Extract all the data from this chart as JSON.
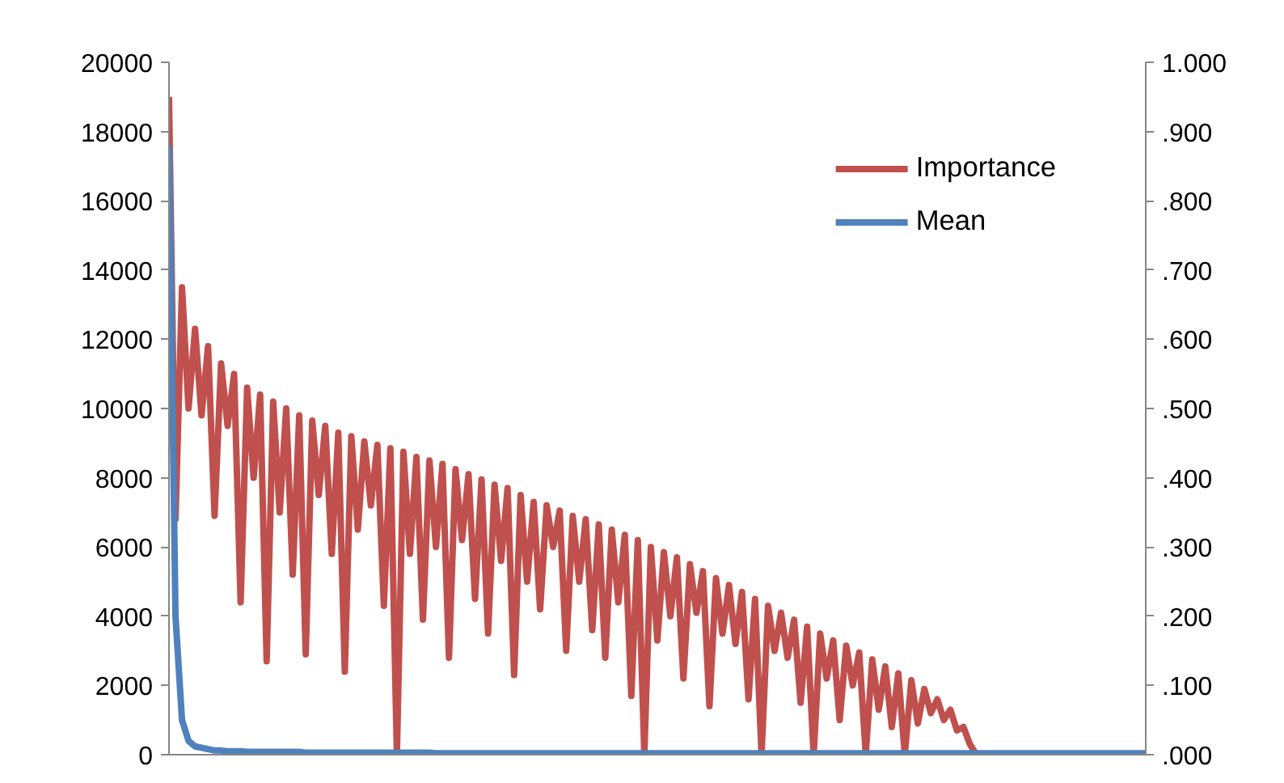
{
  "chart_data": {
    "type": "line",
    "categories": [
      null,
      null,
      null,
      null,
      null,
      null,
      null,
      null,
      null,
      null,
      null,
      null,
      null,
      null,
      null,
      null,
      null,
      null,
      null,
      null,
      null,
      null,
      null,
      null,
      null,
      null,
      null,
      null,
      null,
      null,
      null,
      null,
      null,
      null,
      null,
      null,
      null,
      null,
      null,
      null,
      null,
      null,
      null,
      null,
      null,
      null,
      null,
      null,
      null,
      null,
      null,
      null,
      null,
      null,
      null,
      null,
      null,
      null,
      null,
      null,
      null,
      null,
      null,
      null,
      null,
      null,
      null,
      null,
      null,
      null,
      null,
      null,
      null,
      null,
      null,
      null,
      null,
      null,
      null,
      null,
      null,
      null,
      null,
      null,
      null,
      null,
      null,
      null,
      null,
      null,
      null,
      null,
      null,
      null,
      null,
      null,
      null,
      null,
      null,
      null,
      null,
      null,
      null,
      null,
      null,
      null,
      null,
      null,
      null,
      null,
      null,
      null,
      null,
      null,
      null,
      null,
      null,
      null,
      null,
      null,
      null,
      null,
      null,
      null,
      null,
      null,
      null,
      null,
      null,
      null,
      null,
      null,
      null,
      null,
      null,
      null,
      null,
      null,
      null,
      null,
      null,
      null,
      null,
      null,
      null,
      null,
      null,
      null,
      null,
      null,
      null
    ],
    "series": [
      {
        "name": "Importance",
        "color": "#c0504d",
        "values": [
          19000,
          6800,
          13500,
          10000,
          12300,
          9800,
          11800,
          6900,
          11300,
          9500,
          11000,
          4400,
          10600,
          8000,
          10400,
          2700,
          10200,
          7000,
          10000,
          5200,
          9800,
          2900,
          9650,
          7500,
          9500,
          5800,
          9300,
          2400,
          9200,
          6500,
          9050,
          7200,
          8950,
          4300,
          8850,
          0,
          8750,
          5800,
          8600,
          3900,
          8500,
          6000,
          8400,
          2800,
          8250,
          6200,
          8100,
          4500,
          7950,
          3500,
          7800,
          5600,
          7700,
          2300,
          7500,
          5000,
          7300,
          4200,
          7200,
          6000,
          7050,
          3000,
          6900,
          5000,
          6800,
          3600,
          6650,
          2800,
          6500,
          4400,
          6350,
          1700,
          6200,
          0,
          6000,
          3300,
          5850,
          4000,
          5700,
          2200,
          5500,
          4100,
          5300,
          1400,
          5100,
          3500,
          4900,
          3200,
          4700,
          1600,
          4500,
          0,
          4300,
          3000,
          4100,
          2800,
          3900,
          1500,
          3700,
          0,
          3500,
          2200,
          3300,
          1000,
          3150,
          2000,
          2950,
          0,
          2750,
          1300,
          2550,
          800,
          2350,
          0,
          2150,
          900,
          1900,
          1200,
          1600,
          1000,
          1300,
          700,
          800,
          300,
          0,
          null,
          null,
          null,
          null,
          null,
          null,
          null,
          null,
          null,
          null,
          null,
          null,
          null,
          null,
          null,
          null,
          null,
          null,
          null,
          null,
          null,
          null,
          null,
          null,
          null,
          null
        ]
      },
      {
        "name": "Mean",
        "color": "#4f81bd",
        "axis": "y2",
        "values": [
          0.88,
          0.2,
          0.05,
          0.02,
          0.012,
          0.01,
          0.008,
          0.006,
          0.006,
          0.005,
          0.005,
          0.005,
          0.004,
          0.004,
          0.004,
          0.004,
          0.004,
          0.004,
          0.004,
          0.004,
          0.004,
          0.003,
          0.003,
          0.003,
          0.003,
          0.003,
          0.003,
          0.003,
          0.003,
          0.003,
          0.003,
          0.003,
          0.003,
          0.003,
          0.003,
          0.003,
          0.003,
          0.003,
          0.003,
          0.003,
          0.003,
          0.002,
          0.002,
          0.002,
          0.002,
          0.002,
          0.002,
          0.002,
          0.002,
          0.002,
          0.002,
          0.002,
          0.002,
          0.002,
          0.002,
          0.002,
          0.002,
          0.002,
          0.002,
          0.002,
          0.002,
          0.002,
          0.002,
          0.002,
          0.002,
          0.002,
          0.002,
          0.002,
          0.002,
          0.002,
          0.002,
          0.002,
          0.002,
          0.002,
          0.002,
          0.002,
          0.002,
          0.002,
          0.002,
          0.002,
          0.002,
          0.002,
          0.002,
          0.002,
          0.002,
          0.002,
          0.002,
          0.002,
          0.002,
          0.002,
          0.002,
          0.002,
          0.002,
          0.002,
          0.002,
          0.002,
          0.002,
          0.002,
          0.002,
          0.002,
          0.002,
          0.002,
          0.002,
          0.002,
          0.002,
          0.002,
          0.002,
          0.002,
          0.002,
          0.002,
          0.002,
          0.002,
          0.002,
          0.002,
          0.002,
          0.002,
          0.002,
          0.002,
          0.002,
          0.002,
          0.002,
          0.002,
          0.002,
          0.002,
          0.002,
          0.002,
          0.002,
          0.002,
          0.002,
          0.002,
          0.002,
          0.002,
          0.002,
          0.002,
          0.002,
          0.002,
          0.002,
          0.002,
          0.002,
          0.002,
          0.002,
          0.002,
          0.002,
          0.002,
          0.002,
          0.002,
          0.002,
          0.002,
          0.002,
          0.002,
          0.002
        ]
      }
    ],
    "ylim": [
      0,
      20000
    ],
    "yticks": [
      0,
      2000,
      4000,
      6000,
      8000,
      10000,
      12000,
      14000,
      16000,
      18000,
      20000
    ],
    "y2lim": [
      0,
      1
    ],
    "y2ticks": [
      {
        "value": 0,
        "label": ".000"
      },
      {
        "value": 0.1,
        "label": ".100"
      },
      {
        "value": 0.2,
        "label": ".200"
      },
      {
        "value": 0.3,
        "label": ".300"
      },
      {
        "value": 0.4,
        "label": ".400"
      },
      {
        "value": 0.5,
        "label": ".500"
      },
      {
        "value": 0.6,
        "label": ".600"
      },
      {
        "value": 0.7,
        "label": ".700"
      },
      {
        "value": 0.8,
        "label": ".800"
      },
      {
        "value": 0.9,
        "label": ".900"
      },
      {
        "value": 1,
        "label": "1.000"
      }
    ],
    "legend": "top right",
    "grid": false,
    "marker": "none",
    "line_style": "solid"
  }
}
